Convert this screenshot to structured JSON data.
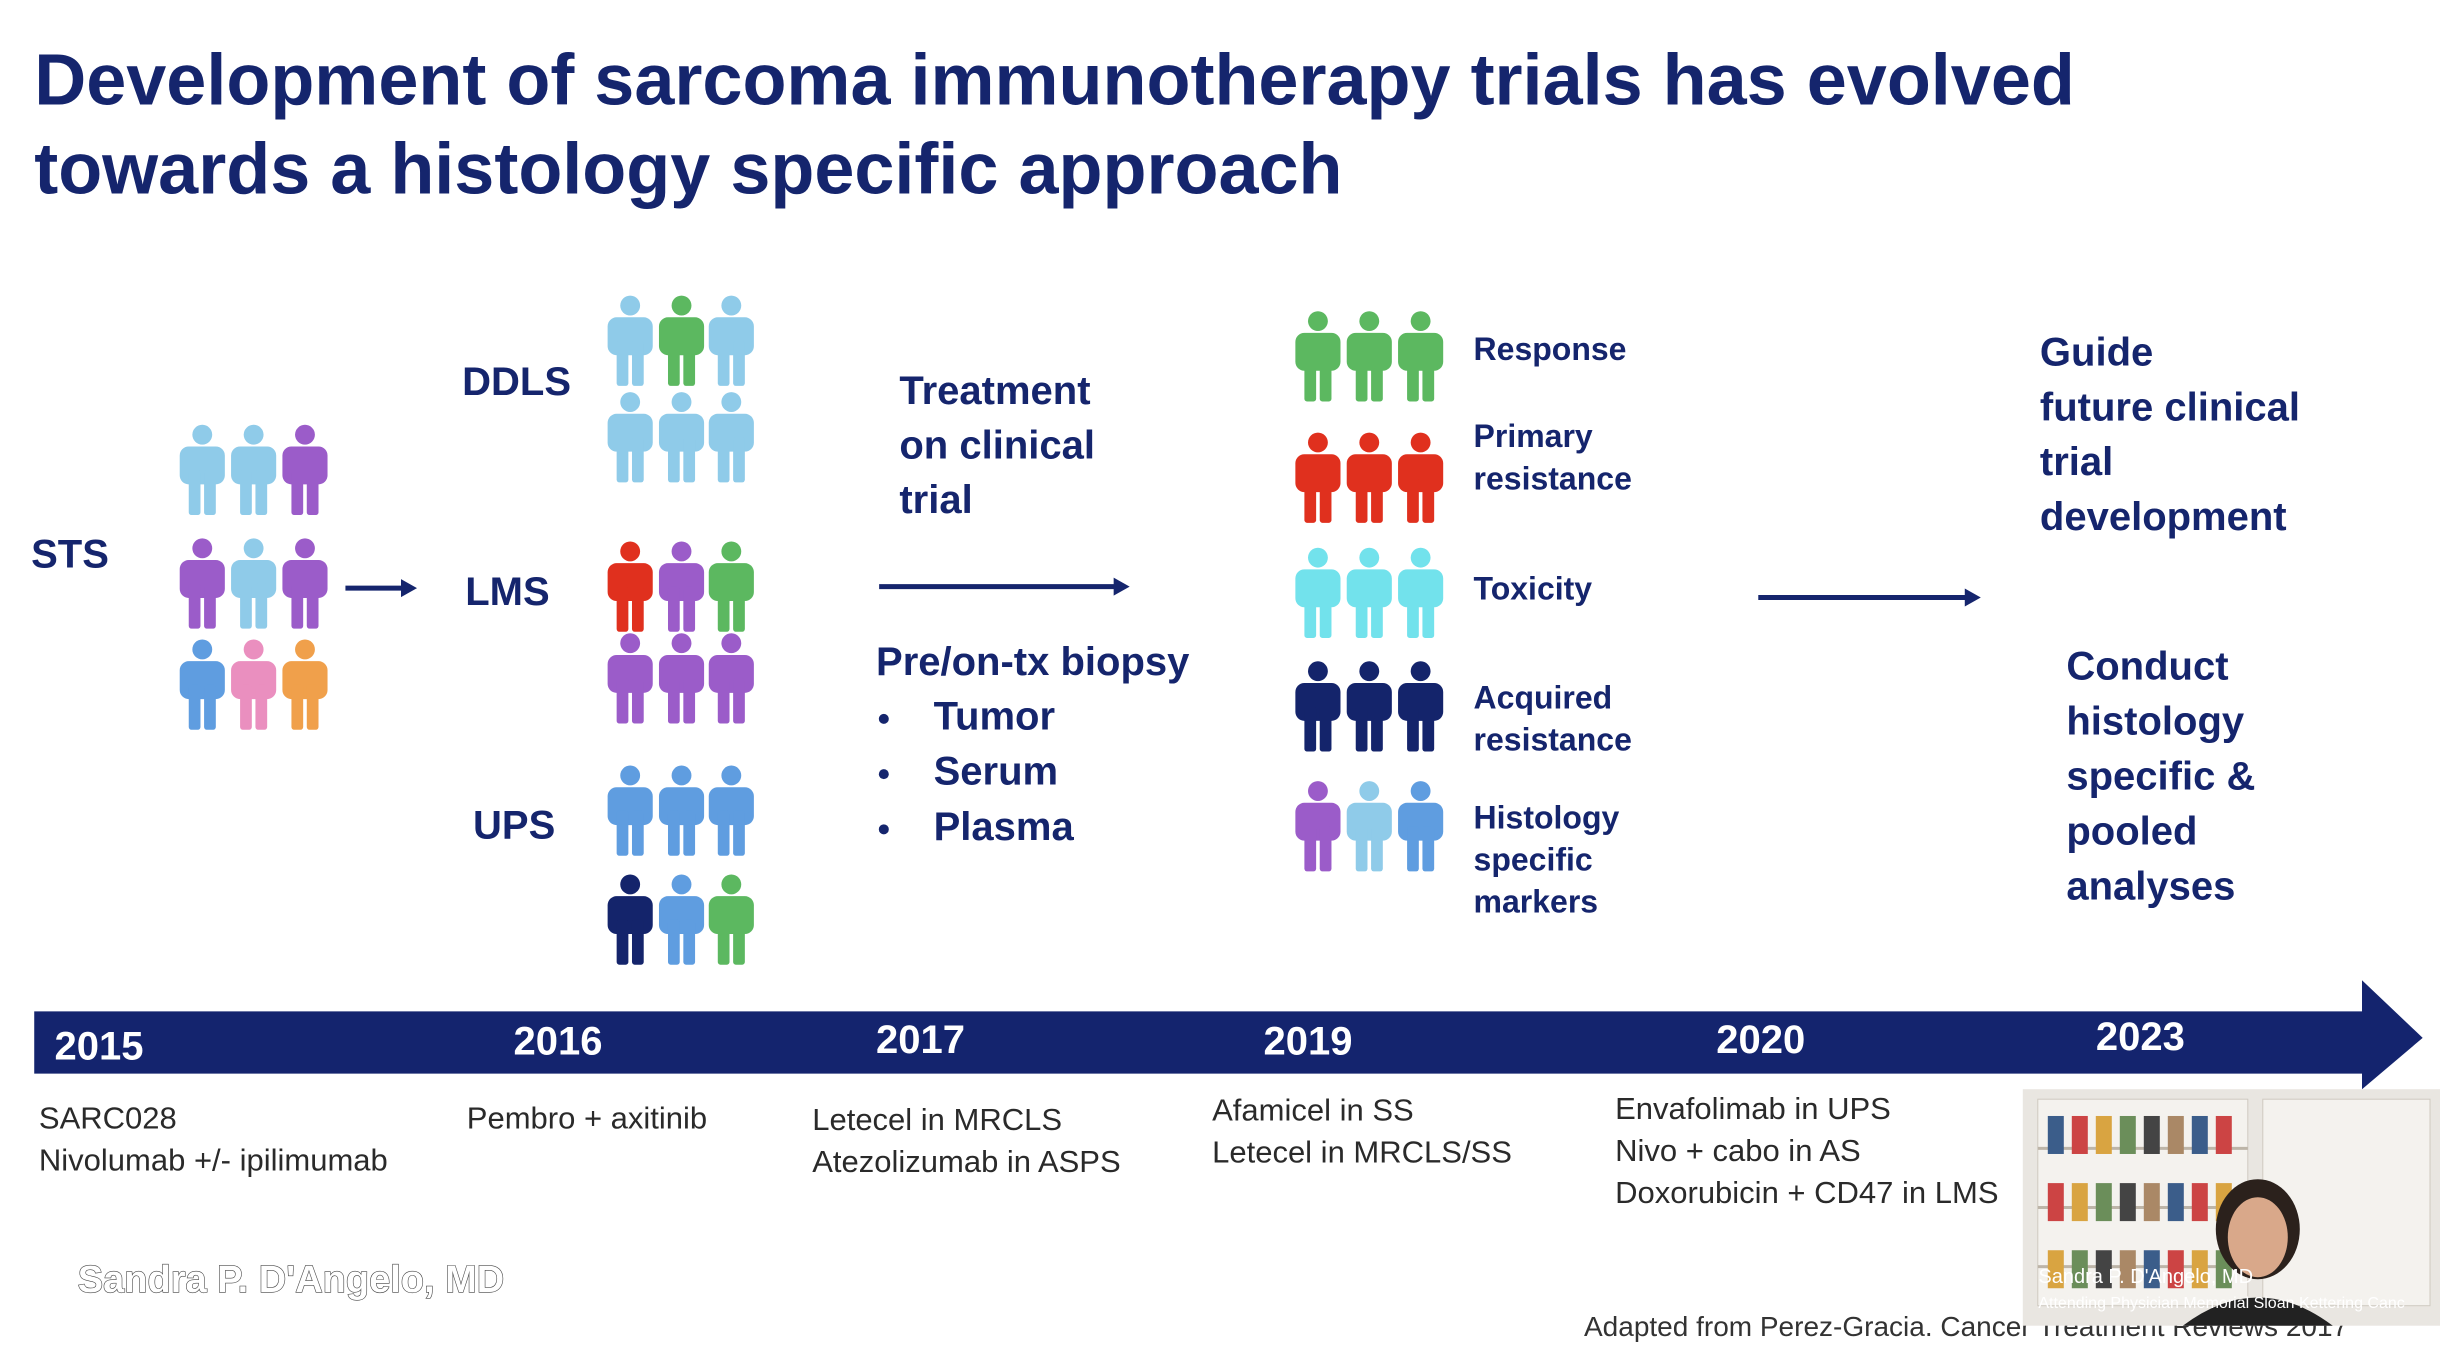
{
  "title": {
    "lines": [
      "Development of sarcoma immunotherapy trials has evolved",
      "towards a histology specific approach"
    ]
  },
  "cohorts": {
    "all": "STS",
    "histologies": [
      "DDLS",
      "LMS",
      "UPS"
    ]
  },
  "treatment": {
    "lines": [
      "Treatment",
      "on clinical",
      "trial"
    ]
  },
  "biopsy": {
    "heading": "Pre/on-tx biopsy",
    "samples": [
      "Tumor",
      "Serum",
      "Plasma"
    ]
  },
  "outcomes": [
    {
      "lines": [
        "Response"
      ]
    },
    {
      "lines": [
        "Primary",
        "resistance"
      ]
    },
    {
      "lines": [
        "Toxicity"
      ]
    },
    {
      "lines": [
        "Acquired",
        "resistance"
      ]
    },
    {
      "lines": [
        "Histology",
        "specific",
        "markers"
      ]
    }
  ],
  "goals": {
    "guide": [
      "Guide",
      "future clinical",
      "trial",
      "development"
    ],
    "conduct": [
      "Conduct",
      "histology",
      "specific &",
      "pooled",
      "analyses"
    ]
  },
  "timeline": [
    {
      "year": "2015",
      "trials": [
        "SARC028",
        "Nivolumab +/- ipilimumab"
      ]
    },
    {
      "year": "2016",
      "trials": [
        "Pembro + axitinib"
      ]
    },
    {
      "year": "2017",
      "trials": [
        "Letecel in MRCLS",
        "Atezolizumab in ASPS"
      ]
    },
    {
      "year": "2019",
      "trials": [
        "Afamicel in SS",
        "Letecel in MRCLS/SS"
      ]
    },
    {
      "year": "2020",
      "trials": [
        "Envafolimab in UPS",
        "Nivo + cabo in AS",
        "Doxorubicin + CD47 in LMS"
      ]
    },
    {
      "year": "2023"
    }
  ],
  "source": "Adapted from Perez-Gracia. Cancer Treatment Reviews 2017",
  "meeting": {
    "presenter_overlay": "Sandra P. D'Angelo, MD",
    "video_name": "Sandra P. D'Angelo, MD",
    "video_title": "Attending Physician Memorial Sloan Kettering Canc"
  }
}
